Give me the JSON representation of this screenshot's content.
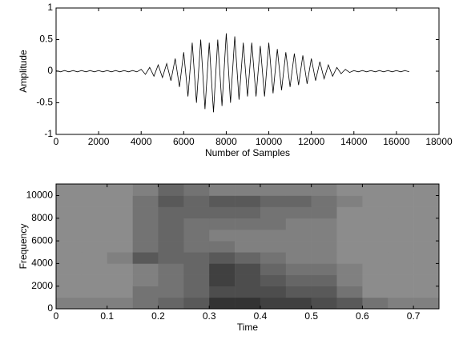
{
  "chart_data": [
    {
      "type": "line",
      "xlabel": "Number of Samples",
      "ylabel": "Amplitude",
      "xlim": [
        0,
        18000
      ],
      "xticks": [
        0,
        2000,
        4000,
        6000,
        8000,
        10000,
        12000,
        14000,
        16000,
        18000
      ],
      "ylim": [
        -1,
        1
      ],
      "yticks": [
        -1,
        -0.5,
        0,
        0.5,
        1
      ],
      "series": [
        {
          "color": "#000000",
          "x": [
            0,
            200,
            400,
            600,
            800,
            1000,
            1200,
            1400,
            1600,
            1800,
            2000,
            2200,
            2400,
            2600,
            2800,
            3000,
            3200,
            3400,
            3600,
            3800,
            4000,
            4200,
            4400,
            4600,
            4800,
            5000,
            5200,
            5400,
            5600,
            5800,
            6000,
            6200,
            6400,
            6600,
            6800,
            7000,
            7200,
            7400,
            7600,
            7800,
            8000,
            8200,
            8400,
            8600,
            8800,
            9000,
            9200,
            9400,
            9600,
            9800,
            10000,
            10200,
            10400,
            10600,
            10800,
            11000,
            11200,
            11400,
            11600,
            11800,
            12000,
            12200,
            12400,
            12600,
            12800,
            13000,
            13200,
            13400,
            13600,
            13800,
            14000,
            14200,
            14400,
            14600,
            14800,
            15000,
            15200,
            15400,
            15600,
            15800,
            16000,
            16200,
            16400,
            16600
          ],
          "values": [
            0.01,
            -0.01,
            0.01,
            -0.01,
            0.01,
            -0.01,
            0.01,
            -0.01,
            0.01,
            -0.01,
            0.01,
            -0.01,
            0.01,
            -0.01,
            0.01,
            -0.01,
            0.01,
            -0.01,
            0.01,
            -0.01,
            0.03,
            -0.05,
            0.06,
            -0.08,
            0.1,
            -0.1,
            0.12,
            -0.15,
            0.2,
            -0.25,
            0.3,
            -0.4,
            0.45,
            -0.5,
            0.5,
            -0.6,
            0.45,
            -0.65,
            0.5,
            -0.55,
            0.6,
            -0.5,
            0.55,
            -0.45,
            0.45,
            -0.4,
            0.45,
            -0.4,
            0.4,
            -0.4,
            0.45,
            -0.35,
            0.35,
            -0.3,
            0.3,
            -0.25,
            0.28,
            -0.22,
            0.25,
            -0.2,
            0.2,
            -0.15,
            0.15,
            -0.12,
            0.1,
            -0.08,
            0.06,
            -0.04,
            0.03,
            -0.02,
            0.01,
            -0.01,
            0.01,
            -0.01,
            0.01,
            -0.01,
            0.01,
            -0.01,
            0.01,
            -0.01,
            0.01,
            -0.01,
            0.01,
            -0.01
          ]
        }
      ]
    },
    {
      "type": "heatmap",
      "xlabel": "Time",
      "ylabel": "Frequency",
      "colormap": "gray",
      "xlim": [
        0,
        0.75
      ],
      "xticks": [
        0,
        0.1,
        0.2,
        0.3,
        0.4,
        0.5,
        0.6,
        0.7
      ],
      "ylim": [
        0,
        11025
      ],
      "yticks": [
        0,
        2000,
        4000,
        6000,
        8000,
        10000
      ],
      "x": [
        0.025,
        0.075,
        0.125,
        0.175,
        0.225,
        0.275,
        0.325,
        0.375,
        0.425,
        0.475,
        0.525,
        0.575,
        0.625,
        0.675,
        0.725
      ],
      "y": [
        500,
        1500,
        2500,
        3500,
        4500,
        5500,
        6500,
        7500,
        8500,
        9500,
        10500
      ],
      "values": [
        [
          0.5,
          0.5,
          0.5,
          0.45,
          0.4,
          0.35,
          0.2,
          0.2,
          0.25,
          0.25,
          0.3,
          0.35,
          0.45,
          0.5,
          0.5
        ],
        [
          0.55,
          0.55,
          0.55,
          0.45,
          0.45,
          0.4,
          0.3,
          0.3,
          0.3,
          0.35,
          0.35,
          0.45,
          0.55,
          0.55,
          0.55
        ],
        [
          0.55,
          0.55,
          0.55,
          0.5,
          0.45,
          0.4,
          0.25,
          0.3,
          0.35,
          0.4,
          0.4,
          0.5,
          0.55,
          0.55,
          0.55
        ],
        [
          0.55,
          0.55,
          0.55,
          0.5,
          0.45,
          0.4,
          0.25,
          0.3,
          0.4,
          0.45,
          0.45,
          0.5,
          0.55,
          0.55,
          0.55
        ],
        [
          0.55,
          0.55,
          0.5,
          0.35,
          0.4,
          0.4,
          0.35,
          0.4,
          0.45,
          0.5,
          0.5,
          0.55,
          0.55,
          0.55,
          0.55
        ],
        [
          0.55,
          0.55,
          0.55,
          0.45,
          0.4,
          0.45,
          0.45,
          0.5,
          0.5,
          0.5,
          0.5,
          0.55,
          0.55,
          0.55,
          0.55
        ],
        [
          0.55,
          0.55,
          0.55,
          0.45,
          0.4,
          0.45,
          0.5,
          0.5,
          0.5,
          0.5,
          0.5,
          0.55,
          0.55,
          0.55,
          0.55
        ],
        [
          0.55,
          0.55,
          0.55,
          0.45,
          0.4,
          0.45,
          0.45,
          0.45,
          0.45,
          0.5,
          0.5,
          0.55,
          0.55,
          0.55,
          0.55
        ],
        [
          0.55,
          0.55,
          0.55,
          0.45,
          0.4,
          0.4,
          0.4,
          0.4,
          0.45,
          0.45,
          0.45,
          0.55,
          0.55,
          0.55,
          0.55
        ],
        [
          0.55,
          0.55,
          0.55,
          0.45,
          0.35,
          0.4,
          0.35,
          0.35,
          0.4,
          0.4,
          0.45,
          0.5,
          0.55,
          0.55,
          0.55
        ],
        [
          0.55,
          0.55,
          0.55,
          0.5,
          0.4,
          0.45,
          0.5,
          0.5,
          0.5,
          0.5,
          0.5,
          0.55,
          0.55,
          0.55,
          0.55
        ]
      ]
    }
  ]
}
